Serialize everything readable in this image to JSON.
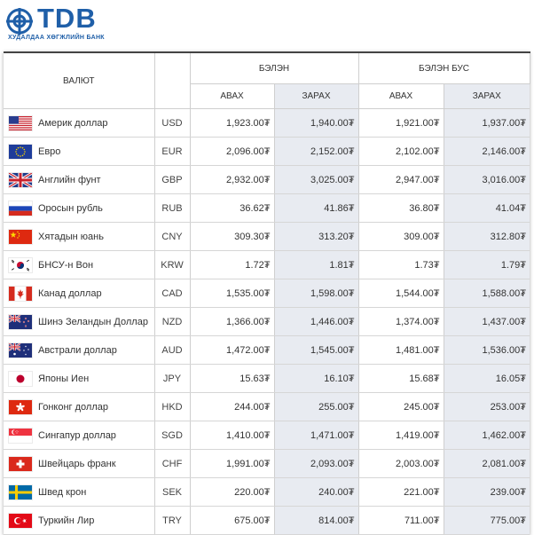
{
  "brand": {
    "name": "TDB",
    "subtitle": "ХУДАЛДАА ХӨГЖЛИЙН БАНК",
    "color": "#1f5fa8"
  },
  "headers": {
    "currency": "ВАЛЮТ",
    "cash": "БЭЛЭН",
    "noncash": "БЭЛЭН БУС",
    "buy": "АВАХ",
    "sell": "ЗАРАХ"
  },
  "rows": [
    {
      "flag": "usa-flag-icon",
      "name": "Америк доллар",
      "code": "USD",
      "cash_buy": "1,923.00₮",
      "cash_sell": "1,940.00₮",
      "noncash_buy": "1,921.00₮",
      "noncash_sell": "1,937.00₮"
    },
    {
      "flag": "eu-flag-icon",
      "name": "Евро",
      "code": "EUR",
      "cash_buy": "2,096.00₮",
      "cash_sell": "2,152.00₮",
      "noncash_buy": "2,102.00₮",
      "noncash_sell": "2,146.00₮"
    },
    {
      "flag": "uk-flag-icon",
      "name": "Английн фунт",
      "code": "GBP",
      "cash_buy": "2,932.00₮",
      "cash_sell": "3,025.00₮",
      "noncash_buy": "2,947.00₮",
      "noncash_sell": "3,016.00₮"
    },
    {
      "flag": "russia-flag-icon",
      "name": "Оросын рубль",
      "code": "RUB",
      "cash_buy": "36.62₮",
      "cash_sell": "41.86₮",
      "noncash_buy": "36.80₮",
      "noncash_sell": "41.04₮"
    },
    {
      "flag": "china-flag-icon",
      "name": "Хятадын юань",
      "code": "CNY",
      "cash_buy": "309.30₮",
      "cash_sell": "313.20₮",
      "noncash_buy": "309.00₮",
      "noncash_sell": "312.80₮"
    },
    {
      "flag": "korea-flag-icon",
      "name": "БНСУ-н Вон",
      "code": "KRW",
      "cash_buy": "1.72₮",
      "cash_sell": "1.81₮",
      "noncash_buy": "1.73₮",
      "noncash_sell": "1.79₮"
    },
    {
      "flag": "canada-flag-icon",
      "name": "Канад доллар",
      "code": "CAD",
      "cash_buy": "1,535.00₮",
      "cash_sell": "1,598.00₮",
      "noncash_buy": "1,544.00₮",
      "noncash_sell": "1,588.00₮"
    },
    {
      "flag": "nz-flag-icon",
      "name": "Шинэ Зеландын Доллар",
      "code": "NZD",
      "cash_buy": "1,366.00₮",
      "cash_sell": "1,446.00₮",
      "noncash_buy": "1,374.00₮",
      "noncash_sell": "1,437.00₮"
    },
    {
      "flag": "australia-flag-icon",
      "name": "Австрали доллар",
      "code": "AUD",
      "cash_buy": "1,472.00₮",
      "cash_sell": "1,545.00₮",
      "noncash_buy": "1,481.00₮",
      "noncash_sell": "1,536.00₮"
    },
    {
      "flag": "japan-flag-icon",
      "name": "Японы Иен",
      "code": "JPY",
      "cash_buy": "15.63₮",
      "cash_sell": "16.10₮",
      "noncash_buy": "15.68₮",
      "noncash_sell": "16.05₮"
    },
    {
      "flag": "hongkong-flag-icon",
      "name": "Гонконг доллар",
      "code": "HKD",
      "cash_buy": "244.00₮",
      "cash_sell": "255.00₮",
      "noncash_buy": "245.00₮",
      "noncash_sell": "253.00₮"
    },
    {
      "flag": "singapore-flag-icon",
      "name": "Сингапур доллар",
      "code": "SGD",
      "cash_buy": "1,410.00₮",
      "cash_sell": "1,471.00₮",
      "noncash_buy": "1,419.00₮",
      "noncash_sell": "1,462.00₮"
    },
    {
      "flag": "switzerland-flag-icon",
      "name": "Швейцарь франк",
      "code": "CHF",
      "cash_buy": "1,991.00₮",
      "cash_sell": "2,093.00₮",
      "noncash_buy": "2,003.00₮",
      "noncash_sell": "2,081.00₮"
    },
    {
      "flag": "sweden-flag-icon",
      "name": "Швед крон",
      "code": "SEK",
      "cash_buy": "220.00₮",
      "cash_sell": "240.00₮",
      "noncash_buy": "221.00₮",
      "noncash_sell": "239.00₮"
    },
    {
      "flag": "turkey-flag-icon",
      "name": "Туркийн Лир",
      "code": "TRY",
      "cash_buy": "675.00₮",
      "cash_sell": "814.00₮",
      "noncash_buy": "711.00₮",
      "noncash_sell": "775.00₮"
    }
  ]
}
